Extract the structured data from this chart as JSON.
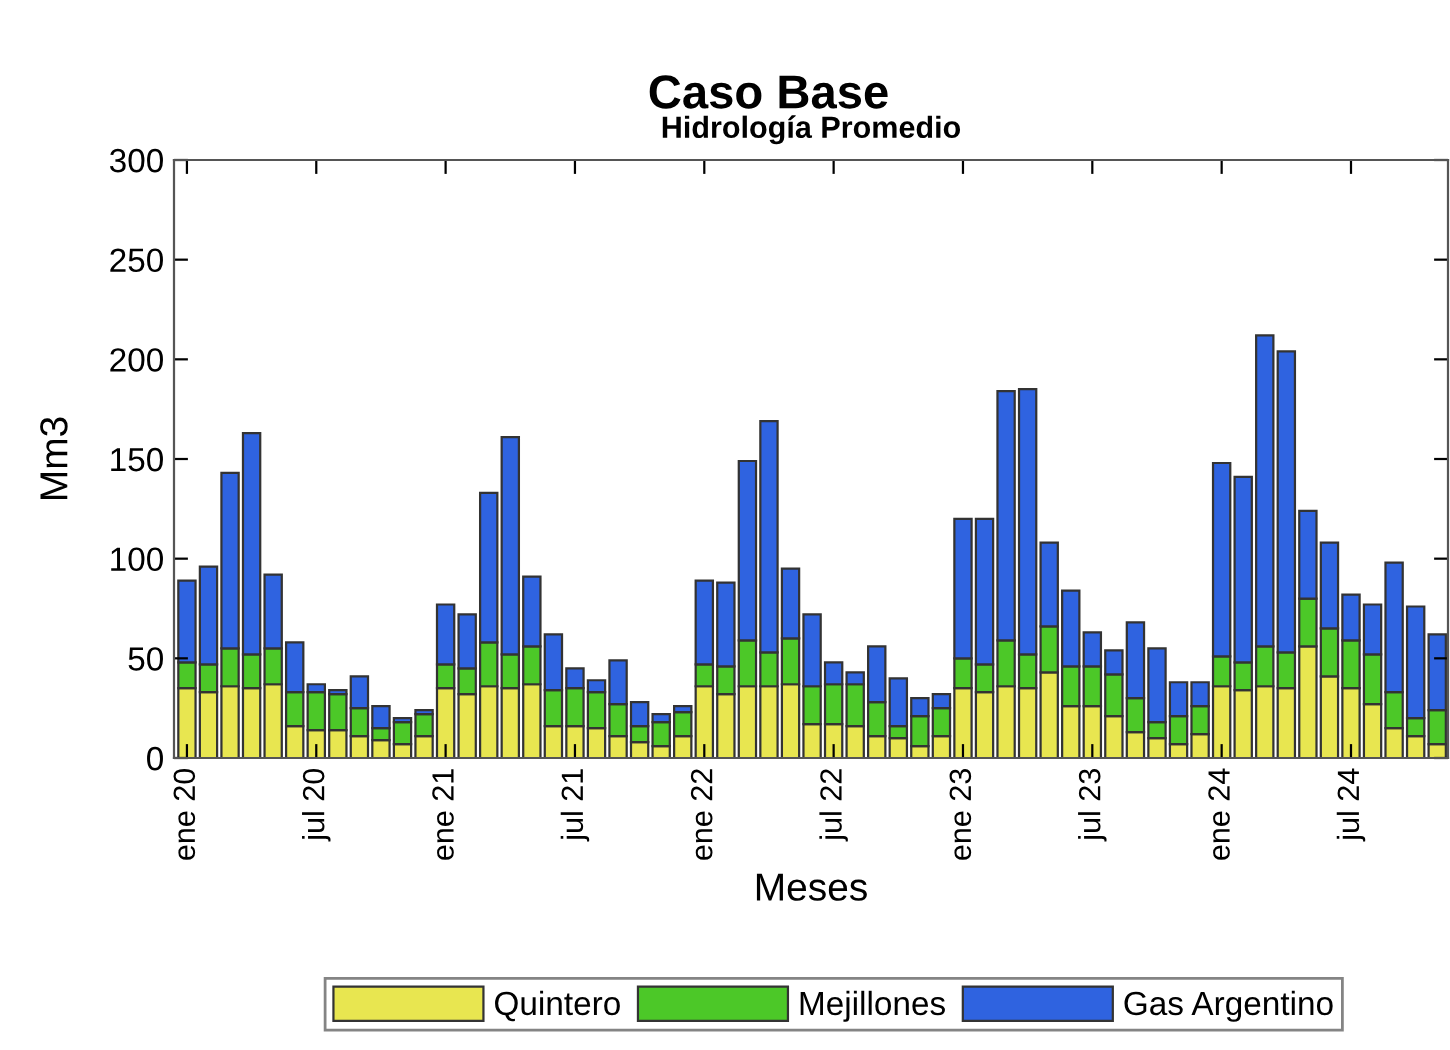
{
  "chart_data": {
    "type": "bar",
    "stacked": true,
    "title": "Caso Base",
    "subtitle": "Hidrología Promedio",
    "xlabel": "Meses",
    "ylabel": "Mm3",
    "categories": [
      "ene 20",
      null,
      null,
      null,
      null,
      null,
      "jul 20",
      null,
      null,
      null,
      null,
      null,
      "ene 21",
      null,
      null,
      null,
      null,
      null,
      "jul 21",
      null,
      null,
      null,
      null,
      null,
      "ene 22",
      null,
      null,
      null,
      null,
      null,
      "jul 22",
      null,
      null,
      null,
      null,
      null,
      "ene 23",
      null,
      null,
      null,
      null,
      null,
      "jul 23",
      null,
      null,
      null,
      null,
      null,
      "ene 24",
      null,
      null,
      null,
      null,
      null,
      "jul 24",
      null,
      null,
      null,
      null
    ],
    "series": [
      {
        "name": "Quintero",
        "color": "#e8e650",
        "values": [
          35,
          33,
          36,
          35,
          37,
          16,
          14,
          14,
          11,
          9,
          7,
          11,
          35,
          32,
          36,
          35,
          37,
          16,
          16,
          15,
          11,
          8,
          6,
          11,
          36,
          32,
          36,
          36,
          37,
          17,
          17,
          16,
          11,
          10,
          6,
          11,
          35,
          33,
          36,
          35,
          43,
          26,
          26,
          21,
          13,
          10,
          7,
          12,
          36,
          34,
          36,
          35,
          56,
          41,
          35,
          27,
          15,
          11,
          7
        ]
      },
      {
        "name": "Mejillones",
        "color": "#4cc828",
        "values": [
          13,
          14,
          19,
          17,
          18,
          17,
          19,
          18,
          14,
          6,
          11,
          11,
          12,
          13,
          22,
          17,
          19,
          18,
          19,
          18,
          16,
          8,
          12,
          12,
          11,
          14,
          23,
          17,
          23,
          19,
          20,
          21,
          17,
          6,
          15,
          14,
          15,
          14,
          23,
          17,
          23,
          20,
          20,
          21,
          17,
          8,
          14,
          14,
          15,
          14,
          20,
          18,
          24,
          24,
          24,
          25,
          18,
          9,
          17
        ]
      },
      {
        "name": "Gas Argentino",
        "color": "#2f63e0",
        "values": [
          41,
          49,
          88,
          111,
          37,
          25,
          4,
          2,
          16,
          11,
          2,
          2,
          30,
          27,
          75,
          109,
          35,
          28,
          10,
          6,
          22,
          12,
          4,
          3,
          42,
          42,
          90,
          116,
          35,
          36,
          11,
          6,
          28,
          24,
          9,
          7,
          70,
          73,
          125,
          133,
          42,
          38,
          17,
          12,
          38,
          37,
          17,
          12,
          97,
          93,
          156,
          151,
          44,
          43,
          23,
          25,
          65,
          56,
          38
        ]
      }
    ],
    "ylim": [
      0,
      300
    ],
    "yticks": [
      0,
      50,
      100,
      150,
      200,
      250,
      300
    ],
    "grid": false,
    "legend": "bottom"
  }
}
